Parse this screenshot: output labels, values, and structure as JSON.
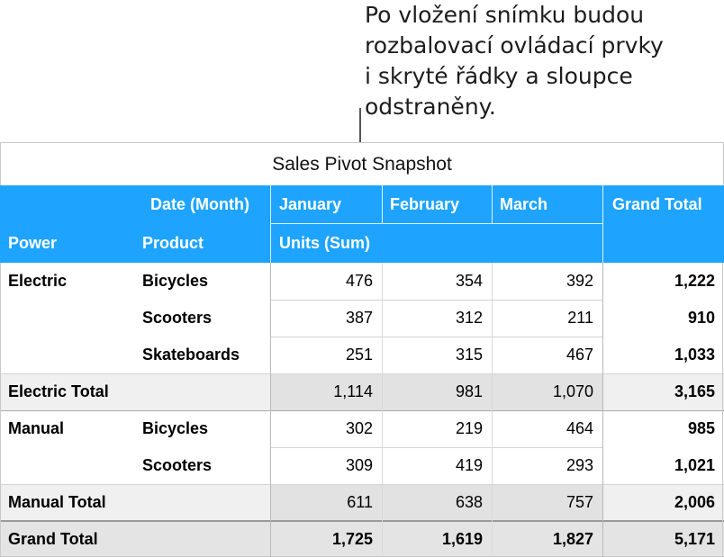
{
  "callout": {
    "lines": [
      "Po vložení snímku budou",
      "rozbalovací ovládací prvky",
      "i skryté řádky a sloupce",
      "odstraněny."
    ]
  },
  "table": {
    "title": "Sales Pivot Snapshot",
    "header": {
      "date_label": "Date (Month)",
      "months": [
        "January",
        "February",
        "March"
      ],
      "grand_total": "Grand Total",
      "power": "Power",
      "product": "Product",
      "units": "Units (Sum)"
    },
    "rows": [
      {
        "power": "Electric",
        "product": "Bicycles",
        "jan": "476",
        "feb": "354",
        "mar": "392",
        "total": "1,222"
      },
      {
        "power": "",
        "product": "Scooters",
        "jan": "387",
        "feb": "312",
        "mar": "211",
        "total": "910"
      },
      {
        "power": "",
        "product": "Skateboards",
        "jan": "251",
        "feb": "315",
        "mar": "467",
        "total": "1,033"
      },
      {
        "power": "Electric Total",
        "product": "",
        "jan": "1,114",
        "feb": "981",
        "mar": "1,070",
        "total": "3,165"
      },
      {
        "power": "Manual",
        "product": "Bicycles",
        "jan": "302",
        "feb": "219",
        "mar": "464",
        "total": "985"
      },
      {
        "power": "",
        "product": "Scooters",
        "jan": "309",
        "feb": "419",
        "mar": "293",
        "total": "1,021"
      },
      {
        "power": "Manual Total",
        "product": "",
        "jan": "611",
        "feb": "638",
        "mar": "757",
        "total": "2,006"
      },
      {
        "power": "Grand Total",
        "product": "",
        "jan": "1,725",
        "feb": "1,619",
        "mar": "1,827",
        "total": "5,171"
      }
    ]
  },
  "colors": {
    "header_blue": "#1ea4ff",
    "total_row_gray": "#f0f0f0",
    "total_cell_gray": "#e2e2e2"
  }
}
